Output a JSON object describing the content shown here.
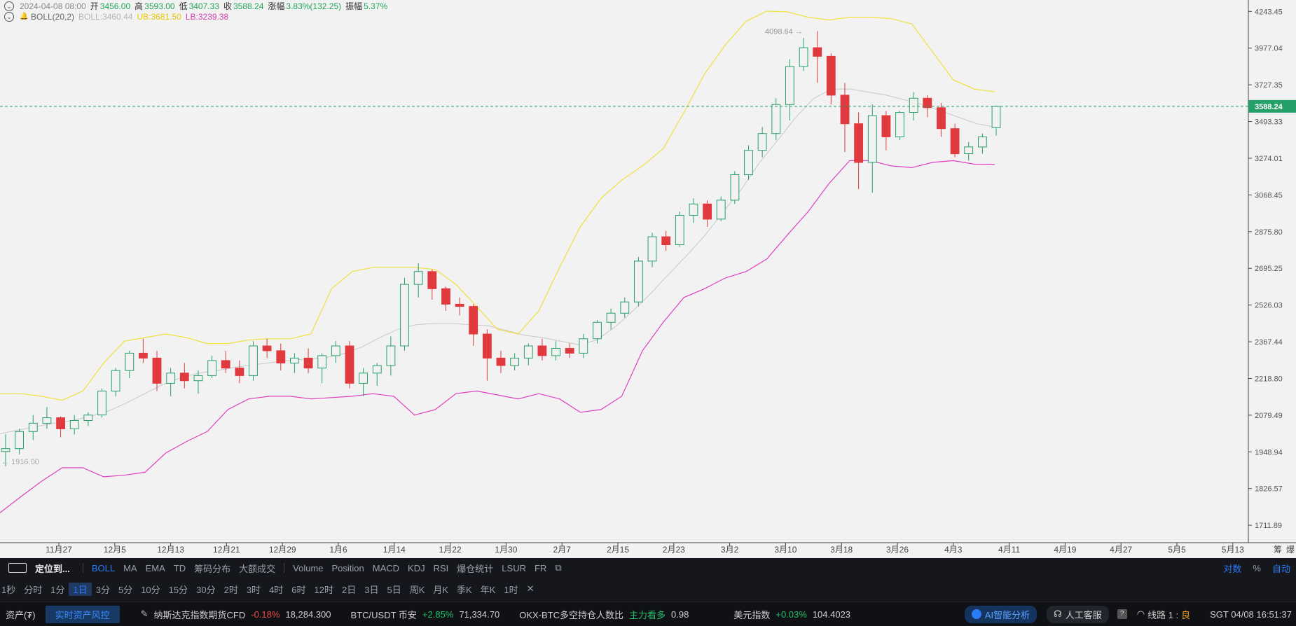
{
  "info": {
    "date": "2024-04-08 08:00",
    "open_label": "开",
    "open": "3456.00",
    "high_label": "高",
    "high": "3593.00",
    "low_label": "低",
    "low": "3407.33",
    "close_label": "收",
    "close": "3588.24",
    "change_label": "涨幅",
    "change": "3.83%(132.25)",
    "amp_label": "振幅",
    "amp": "5.37%",
    "boll_title": "BOLL(20,2)",
    "boll_mid": "BOLL:3460.44",
    "boll_ub": "UB:3681.50",
    "boll_lb": "LB:3239.38"
  },
  "colors": {
    "up": "#26a069",
    "down": "#e0393e",
    "mid": "#c8c8c8",
    "ub": "#f0e040",
    "lb": "#e040c0",
    "price_line": "#26a069",
    "ub_text": "#e6c800",
    "lb_text": "#d040b0"
  },
  "price_label": "3588.24",
  "max_label": "4098.64",
  "min_label": "1916.00",
  "axis_right_extra": [
    "筹",
    "爆"
  ],
  "chart_data": {
    "type": "candlestick",
    "title": "",
    "y_ticks": [
      "4243.45",
      "3977.04",
      "3727.35",
      "3493.33",
      "3274.01",
      "3068.45",
      "2875.80",
      "2695.25",
      "2526.03",
      "2367.44",
      "2218.80",
      "2079.49",
      "1948.94",
      "1826.57",
      "1711.89"
    ],
    "x_ticks": [
      "11月27",
      "12月5",
      "12月13",
      "12月21",
      "12月29",
      "1月6",
      "1月14",
      "1月22",
      "1月30",
      "2月7",
      "2月15",
      "2月23",
      "3月2",
      "3月10",
      "3月18",
      "3月26",
      "4月3",
      "4月11",
      "4月19",
      "4月27",
      "5月5",
      "5月13"
    ],
    "ylim": [
      1660,
      4330
    ],
    "scale": "log",
    "last_price": 3588.24,
    "series": [
      {
        "name": "BOLL",
        "values": [
          2012,
          2025,
          2038,
          2050,
          2060,
          2075,
          2095,
          2125,
          2160,
          2195,
          2222,
          2240,
          2250,
          2263,
          2273,
          2282,
          2290,
          2296,
          2302,
          2318,
          2345,
          2385,
          2420,
          2440,
          2445,
          2445,
          2440,
          2435,
          2415,
          2395,
          2385,
          2370,
          2355,
          2375,
          2430,
          2500,
          2580,
          2670,
          2760,
          2860,
          2980,
          3100,
          3250,
          3380,
          3520,
          3640,
          3700,
          3700,
          3680,
          3660,
          3630,
          3600,
          3560,
          3520,
          3480,
          3460
        ]
      },
      {
        "name": "UB",
        "values": [
          2160,
          2160,
          2150,
          2135,
          2170,
          2280,
          2370,
          2385,
          2400,
          2385,
          2360,
          2360,
          2375,
          2380,
          2380,
          2400,
          2600,
          2680,
          2700,
          2700,
          2700,
          2690,
          2620,
          2520,
          2420,
          2400,
          2500,
          2700,
          2900,
          3050,
          3150,
          3230,
          3330,
          3550,
          3800,
          4000,
          4170,
          4245,
          4240,
          4200,
          4180,
          4200,
          4200,
          4190,
          4150,
          3950,
          3760,
          3700,
          3681.5
        ]
      },
      {
        "name": "LB",
        "values": [
          1750,
          1800,
          1850,
          1895,
          1895,
          1865,
          1870,
          1880,
          1945,
          1985,
          2020,
          2100,
          2140,
          2150,
          2150,
          2140,
          2145,
          2150,
          2160,
          2150,
          2080,
          2100,
          2160,
          2170,
          2155,
          2140,
          2160,
          2140,
          2090,
          2100,
          2150,
          2330,
          2450,
          2560,
          2600,
          2650,
          2680,
          2740,
          2860,
          2980,
          3130,
          3260,
          3260,
          3230,
          3220,
          3250,
          3260,
          3240,
          3239.38
        ]
      },
      {
        "name": "OHLC",
        "values": [
          [
            1950,
            2010,
            1900,
            1960
          ],
          [
            1960,
            2030,
            1940,
            2020
          ],
          [
            2020,
            2080,
            1990,
            2050
          ],
          [
            2050,
            2110,
            2030,
            2070
          ],
          [
            2070,
            2075,
            2000,
            2030
          ],
          [
            2030,
            2080,
            2010,
            2060
          ],
          [
            2060,
            2090,
            2040,
            2080
          ],
          [
            2080,
            2180,
            2070,
            2170
          ],
          [
            2170,
            2260,
            2150,
            2250
          ],
          [
            2250,
            2330,
            2220,
            2320
          ],
          [
            2320,
            2380,
            2280,
            2300
          ],
          [
            2300,
            2330,
            2170,
            2200
          ],
          [
            2200,
            2260,
            2150,
            2240
          ],
          [
            2240,
            2280,
            2180,
            2210
          ],
          [
            2210,
            2250,
            2160,
            2230
          ],
          [
            2230,
            2310,
            2220,
            2290
          ],
          [
            2290,
            2330,
            2240,
            2260
          ],
          [
            2260,
            2290,
            2200,
            2230
          ],
          [
            2230,
            2370,
            2210,
            2350
          ],
          [
            2350,
            2380,
            2300,
            2330
          ],
          [
            2330,
            2360,
            2250,
            2280
          ],
          [
            2280,
            2320,
            2240,
            2300
          ],
          [
            2300,
            2340,
            2240,
            2260
          ],
          [
            2260,
            2320,
            2200,
            2310
          ],
          [
            2310,
            2370,
            2280,
            2350
          ],
          [
            2350,
            2370,
            2180,
            2200
          ],
          [
            2200,
            2260,
            2150,
            2240
          ],
          [
            2240,
            2280,
            2190,
            2270
          ],
          [
            2270,
            2390,
            2230,
            2350
          ],
          [
            2350,
            2650,
            2330,
            2620
          ],
          [
            2620,
            2720,
            2560,
            2680
          ],
          [
            2680,
            2690,
            2550,
            2600
          ],
          [
            2600,
            2610,
            2500,
            2530
          ],
          [
            2530,
            2560,
            2480,
            2520
          ],
          [
            2520,
            2530,
            2350,
            2400
          ],
          [
            2400,
            2420,
            2210,
            2300
          ],
          [
            2300,
            2330,
            2240,
            2270
          ],
          [
            2270,
            2320,
            2250,
            2300
          ],
          [
            2300,
            2360,
            2270,
            2350
          ],
          [
            2350,
            2380,
            2290,
            2310
          ],
          [
            2310,
            2370,
            2290,
            2340
          ],
          [
            2340,
            2360,
            2300,
            2320
          ],
          [
            2320,
            2400,
            2300,
            2380
          ],
          [
            2380,
            2460,
            2360,
            2450
          ],
          [
            2450,
            2510,
            2420,
            2490
          ],
          [
            2490,
            2560,
            2470,
            2540
          ],
          [
            2540,
            2750,
            2520,
            2730
          ],
          [
            2730,
            2870,
            2700,
            2850
          ],
          [
            2850,
            2880,
            2780,
            2810
          ],
          [
            2810,
            2980,
            2800,
            2960
          ],
          [
            2960,
            3050,
            2920,
            3020
          ],
          [
            3020,
            3040,
            2900,
            2940
          ],
          [
            2940,
            3060,
            2930,
            3040
          ],
          [
            3040,
            3200,
            3020,
            3180
          ],
          [
            3180,
            3350,
            3150,
            3320
          ],
          [
            3320,
            3460,
            3280,
            3420
          ],
          [
            3420,
            3640,
            3380,
            3600
          ],
          [
            3600,
            3900,
            3500,
            3850
          ],
          [
            3850,
            4050,
            3820,
            3980
          ],
          [
            3980,
            4098.64,
            3740,
            3920
          ],
          [
            3920,
            3940,
            3600,
            3660
          ],
          [
            3660,
            3740,
            3310,
            3480
          ],
          [
            3480,
            3550,
            3100,
            3250
          ],
          [
            3250,
            3600,
            3080,
            3530
          ],
          [
            3530,
            3560,
            3320,
            3400
          ],
          [
            3400,
            3560,
            3380,
            3550
          ],
          [
            3550,
            3680,
            3500,
            3640
          ],
          [
            3640,
            3660,
            3520,
            3580
          ],
          [
            3580,
            3610,
            3400,
            3450
          ],
          [
            3450,
            3480,
            3280,
            3300
          ],
          [
            3300,
            3370,
            3260,
            3340
          ],
          [
            3340,
            3420,
            3300,
            3400
          ],
          [
            3456.0,
            3593.0,
            3407.33,
            3588.24
          ]
        ]
      }
    ]
  },
  "toolbar": {
    "locate": "定位到...",
    "indicators": [
      "BOLL",
      "MA",
      "EMA",
      "TD",
      "筹码分布",
      "大额成交"
    ],
    "sub_indicators": [
      "Volume",
      "Position",
      "MACD",
      "KDJ",
      "RSI",
      "爆仓统计",
      "LSUR",
      "FR"
    ],
    "right": [
      "对数",
      "%",
      "自动"
    ],
    "intervals": [
      "1秒",
      "分时",
      "1分",
      "1日",
      "3分",
      "5分",
      "10分",
      "15分",
      "30分",
      "2时",
      "3时",
      "4时",
      "6时",
      "12时",
      "2日",
      "3日",
      "5日",
      "周K",
      "月K",
      "季K",
      "年K",
      "1时",
      "✕"
    ]
  },
  "footer": {
    "assets": "资产(₮)",
    "risk": "实时资产风控",
    "nasdaq_name": "纳斯达克指数期货CFD",
    "nasdaq_chg": "-0.18%",
    "nasdaq_val": "18,284.300",
    "btc_name": "BTC/USDT 币安",
    "btc_chg": "+2.85%",
    "btc_val": "71,334.70",
    "okx_name": "OKX-BTC多空持仓人数比",
    "okx_label": "主力看多",
    "okx_val": "0.98",
    "usd_name": "美元指数",
    "usd_chg": "+0.03%",
    "usd_val": "104.4023",
    "ai": "AI智能分析",
    "service": "人工客服",
    "line_label": "线路 1 :",
    "line_quality": "良",
    "time": "SGT 04/08 16:51:37"
  }
}
